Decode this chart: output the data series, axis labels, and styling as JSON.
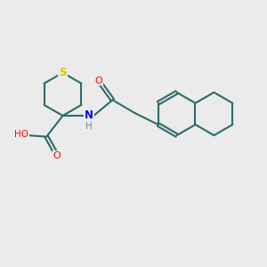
{
  "background_color": "#ebebeb",
  "bond_color": "#2d6b6b",
  "sulfur_color": "#cccc00",
  "nitrogen_color": "#0000ff",
  "oxygen_color": "#ff0000",
  "hydrogen_color": "#808080",
  "bond_width": 1.5,
  "figsize": [
    3.0,
    3.0
  ],
  "dpi": 100,
  "xlim": [
    0,
    10
  ],
  "ylim": [
    0,
    10
  ]
}
